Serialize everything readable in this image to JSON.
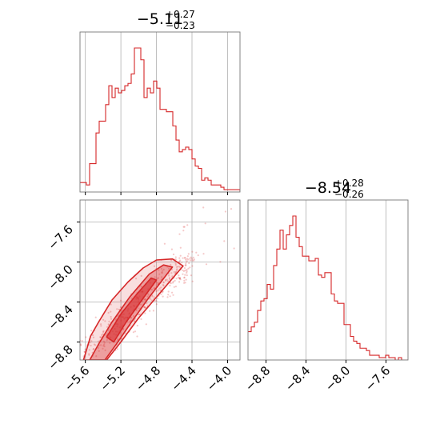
{
  "chart_data": {
    "type": "corner",
    "color": "#d62728",
    "grid": true,
    "titles": [
      {
        "value": "−5.11",
        "upper": "+0.27",
        "lower": "−0.23"
      },
      {
        "value": "−8.54",
        "upper": "+0.28",
        "lower": "−0.26"
      }
    ],
    "param1": {
      "range": [
        -5.66,
        -3.86
      ],
      "ticks": [
        -5.6,
        -5.2,
        -4.8,
        -4.4,
        -4.0
      ],
      "tick_labels": [
        "−5.6",
        "−5.2",
        "−4.8",
        "−4.4",
        "−4.0"
      ]
    },
    "param2": {
      "range": [
        -8.98,
        -7.38
      ],
      "ticks": [
        -8.8,
        -8.4,
        -8.0,
        -7.6
      ],
      "tick_labels": [
        "−8.8",
        "−8.4",
        "−8.0",
        "−7.6"
      ]
    },
    "hist1": {
      "bin_start": -5.66,
      "bin_width": 0.036,
      "counts": [
        4,
        4,
        3,
        12,
        12,
        25,
        30,
        30,
        37,
        45,
        40,
        44,
        42,
        43,
        45,
        46,
        50,
        61,
        61,
        56,
        40,
        44,
        42,
        47,
        44,
        35,
        35,
        34,
        34,
        28,
        22,
        17,
        18,
        19,
        18,
        14,
        11,
        10,
        5,
        6,
        5,
        3,
        3,
        3,
        2,
        1,
        1,
        1,
        1,
        1,
        0,
        0
      ]
    },
    "hist2": {
      "bin_start": -8.98,
      "bin_width": 0.032,
      "counts": [
        12,
        14,
        16,
        21,
        25,
        26,
        32,
        30,
        40,
        47,
        55,
        47,
        53,
        57,
        61,
        52,
        48,
        44,
        44,
        42,
        42,
        43,
        36,
        35,
        37,
        37,
        28,
        25,
        24,
        24,
        15,
        15,
        10,
        8,
        7,
        5,
        5,
        4,
        2,
        2,
        2,
        1,
        1,
        2,
        1,
        1,
        0,
        1,
        0,
        0
      ]
    },
    "contours": [
      {
        "level": "outer",
        "points": [
          [
            -5.62,
            -8.98
          ],
          [
            -5.54,
            -8.74
          ],
          [
            -5.45,
            -8.6
          ],
          [
            -5.3,
            -8.38
          ],
          [
            -5.12,
            -8.2
          ],
          [
            -4.95,
            -8.06
          ],
          [
            -4.8,
            -7.98
          ],
          [
            -4.62,
            -7.97
          ],
          [
            -4.5,
            -8.04
          ],
          [
            -4.75,
            -8.3
          ],
          [
            -5.0,
            -8.56
          ],
          [
            -5.2,
            -8.8
          ],
          [
            -5.36,
            -8.98
          ]
        ]
      },
      {
        "level": "middle",
        "points": [
          [
            -5.55,
            -8.98
          ],
          [
            -5.45,
            -8.82
          ],
          [
            -5.3,
            -8.6
          ],
          [
            -5.1,
            -8.35
          ],
          [
            -4.88,
            -8.12
          ],
          [
            -4.72,
            -8.03
          ],
          [
            -4.62,
            -8.05
          ],
          [
            -4.88,
            -8.35
          ],
          [
            -5.08,
            -8.6
          ],
          [
            -5.25,
            -8.82
          ],
          [
            -5.38,
            -8.98
          ]
        ]
      },
      {
        "level": "inner",
        "points": [
          [
            -5.36,
            -8.75
          ],
          [
            -5.2,
            -8.52
          ],
          [
            -5.02,
            -8.32
          ],
          [
            -4.86,
            -8.16
          ],
          [
            -4.8,
            -8.18
          ],
          [
            -4.98,
            -8.4
          ],
          [
            -5.14,
            -8.6
          ],
          [
            -5.28,
            -8.8
          ]
        ]
      }
    ]
  }
}
